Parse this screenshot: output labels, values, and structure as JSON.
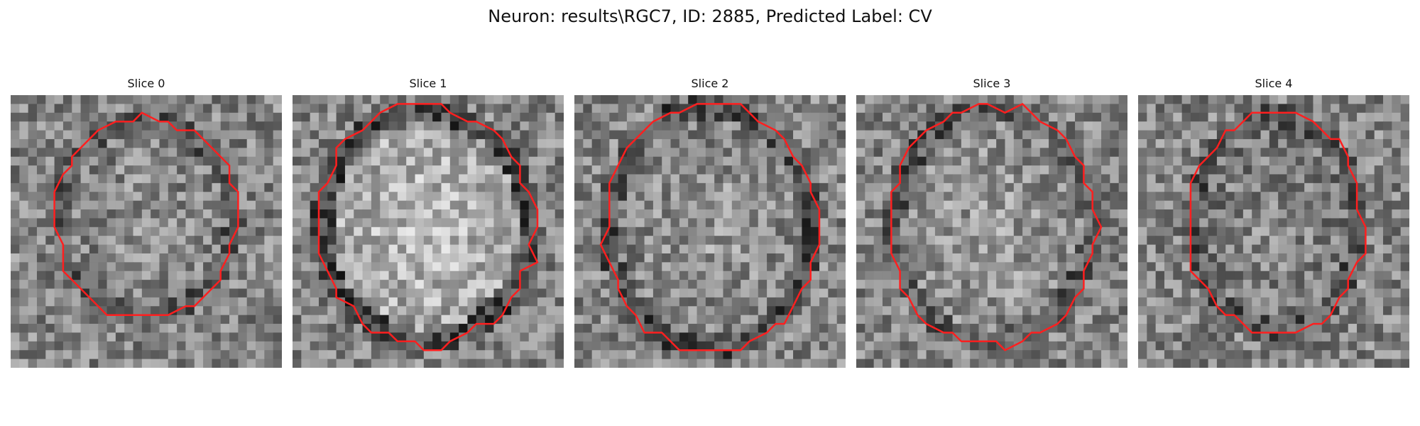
{
  "figure": {
    "title": "Neuron: results\\RGC7, ID: 2885, Predicted Label: CV"
  },
  "style": {
    "contour_color": "#ff1f1f"
  },
  "slices": [
    {
      "title": "Slice 0"
    },
    {
      "title": "Slice 1"
    },
    {
      "title": "Slice 2"
    },
    {
      "title": "Slice 3"
    },
    {
      "title": "Slice 4"
    }
  ]
}
